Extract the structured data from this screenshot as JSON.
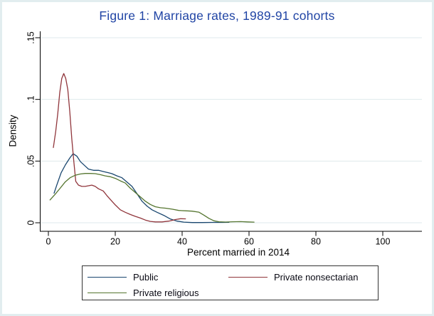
{
  "chart_data": {
    "type": "line",
    "title": "Figure 1: Marriage rates, 1989-91 cohorts",
    "xlabel": "Percent married in 2014",
    "ylabel": "Density",
    "xlim": [
      0,
      100
    ],
    "ylim": [
      0,
      0.15
    ],
    "x_ticks": [
      0,
      20,
      40,
      60,
      80,
      100
    ],
    "y_ticks": [
      0,
      0.05,
      0.1,
      0.15
    ],
    "y_tick_labels": [
      "0",
      ".05",
      ".1",
      ".15"
    ],
    "grid": true,
    "legend_position": "bottom",
    "colors": {
      "grid": "#dfeaec",
      "axis": "#000000",
      "title": "#2145a5"
    },
    "series": [
      {
        "name": "Public",
        "color": "#1a476f",
        "points": [
          [
            1.7,
            0.024
          ],
          [
            2.5,
            0.0305
          ],
          [
            3.8,
            0.0405
          ],
          [
            5.1,
            0.047
          ],
          [
            6.4,
            0.0525
          ],
          [
            7.4,
            0.056
          ],
          [
            8.5,
            0.054
          ],
          [
            9.6,
            0.0495
          ],
          [
            11,
            0.046
          ],
          [
            12,
            0.0435
          ],
          [
            13.5,
            0.0425
          ],
          [
            15,
            0.0425
          ],
          [
            16.5,
            0.0415
          ],
          [
            18,
            0.0405
          ],
          [
            19,
            0.0398
          ],
          [
            20.5,
            0.038
          ],
          [
            22,
            0.0365
          ],
          [
            23.5,
            0.033
          ],
          [
            25,
            0.0295
          ],
          [
            26.5,
            0.0235
          ],
          [
            28,
            0.0175
          ],
          [
            29.5,
            0.0135
          ],
          [
            31,
            0.0105
          ],
          [
            32.5,
            0.0085
          ],
          [
            34.5,
            0.006
          ],
          [
            36.5,
            0.003
          ],
          [
            38.5,
            0.0013
          ],
          [
            40.5,
            0.0005
          ],
          [
            43,
            0.0002
          ],
          [
            46,
            0.0002
          ],
          [
            49,
            0.0003
          ],
          [
            52,
            0.0003
          ],
          [
            54,
            0.0004
          ]
        ]
      },
      {
        "name": "Private nonsectarian",
        "color": "#90353b",
        "points": [
          [
            1.5,
            0.061
          ],
          [
            2.2,
            0.074
          ],
          [
            2.8,
            0.0885
          ],
          [
            3.4,
            0.1055
          ],
          [
            4,
            0.117
          ],
          [
            4.6,
            0.121
          ],
          [
            5.2,
            0.117
          ],
          [
            5.8,
            0.108
          ],
          [
            6.4,
            0.09
          ],
          [
            7,
            0.068
          ],
          [
            7.6,
            0.05
          ],
          [
            8.2,
            0.0335
          ],
          [
            9,
            0.0305
          ],
          [
            10,
            0.0295
          ],
          [
            11,
            0.0295
          ],
          [
            12,
            0.03
          ],
          [
            13,
            0.0305
          ],
          [
            14,
            0.0295
          ],
          [
            15,
            0.0275
          ],
          [
            16.4,
            0.0258
          ],
          [
            17.5,
            0.022
          ],
          [
            18.5,
            0.019
          ],
          [
            20,
            0.0145
          ],
          [
            21.5,
            0.0105
          ],
          [
            23,
            0.0085
          ],
          [
            24.5,
            0.0067
          ],
          [
            26,
            0.0052
          ],
          [
            27.5,
            0.0038
          ],
          [
            29,
            0.0022
          ],
          [
            30.5,
            0.0011
          ],
          [
            32,
            0.0007
          ],
          [
            34,
            0.0007
          ],
          [
            36,
            0.0013
          ],
          [
            38,
            0.0026
          ],
          [
            39.5,
            0.0033
          ],
          [
            41,
            0.0032
          ]
        ]
      },
      {
        "name": "Private religious",
        "color": "#55752f",
        "points": [
          [
            0.5,
            0.0185
          ],
          [
            2,
            0.023
          ],
          [
            3.5,
            0.028
          ],
          [
            5,
            0.033
          ],
          [
            6.5,
            0.0365
          ],
          [
            8,
            0.0385
          ],
          [
            9.5,
            0.0395
          ],
          [
            11,
            0.04
          ],
          [
            12.5,
            0.04
          ],
          [
            14,
            0.0398
          ],
          [
            15.5,
            0.039
          ],
          [
            17,
            0.038
          ],
          [
            18.5,
            0.0373
          ],
          [
            20,
            0.036
          ],
          [
            21.5,
            0.034
          ],
          [
            23,
            0.0322
          ],
          [
            24.5,
            0.028
          ],
          [
            26,
            0.0245
          ],
          [
            27.5,
            0.021
          ],
          [
            29,
            0.0175
          ],
          [
            30.5,
            0.0148
          ],
          [
            32,
            0.013
          ],
          [
            33.5,
            0.0122
          ],
          [
            35,
            0.0118
          ],
          [
            37,
            0.011
          ],
          [
            39,
            0.01
          ],
          [
            41,
            0.0097
          ],
          [
            43,
            0.0094
          ],
          [
            45,
            0.0086
          ],
          [
            46.5,
            0.0062
          ],
          [
            48,
            0.0036
          ],
          [
            49.5,
            0.0016
          ],
          [
            51,
            0.0008
          ],
          [
            53,
            0.0006
          ],
          [
            55,
            0.0008
          ],
          [
            57.5,
            0.0009
          ],
          [
            59.5,
            0.0007
          ],
          [
            61.5,
            0.0005
          ]
        ]
      }
    ]
  }
}
